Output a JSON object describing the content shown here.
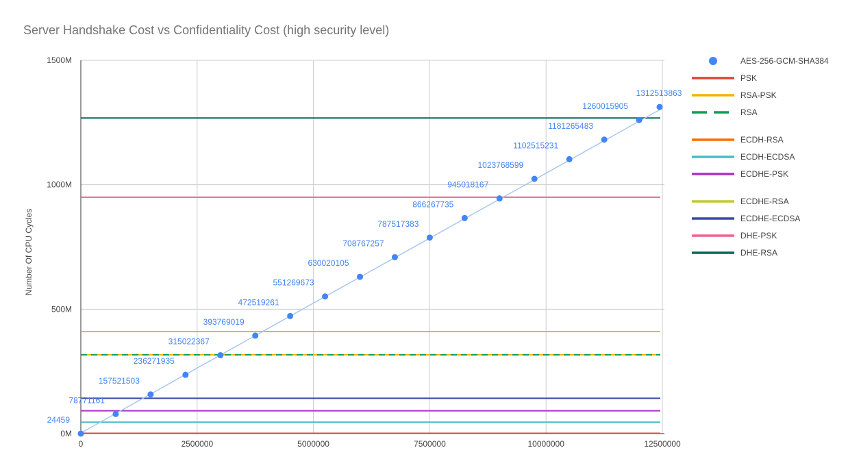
{
  "chart_data": {
    "type": "scatter",
    "title": "Server Handshake Cost vs Confidentiality Cost (high security level)",
    "xlabel": "",
    "ylabel": "Number Of CPU Cycles",
    "xlim": [
      0,
      12500000
    ],
    "ylim": [
      0,
      1500000000
    ],
    "x_ticks": [
      0,
      2500000,
      5000000,
      7500000,
      10000000,
      12500000
    ],
    "x_tick_labels": [
      "0",
      "2500000",
      "5000000",
      "7500000",
      "10000000",
      "12500000"
    ],
    "y_ticks": [
      0,
      500000000,
      1000000000,
      1500000000
    ],
    "y_tick_labels": [
      "0M",
      "500M",
      "1000M",
      "1500M"
    ],
    "grid": true,
    "legend_position": "right",
    "scatter_series": {
      "name": "AES-256-GCM-SHA384",
      "color": "#4285f4",
      "trendline_color": "#a8c7f0",
      "points": [
        {
          "x": 0,
          "y": 24459,
          "label": "24459"
        },
        {
          "x": 750000,
          "y": 78771161,
          "label": "78771161"
        },
        {
          "x": 1500000,
          "y": 157521503,
          "label": "157521503"
        },
        {
          "x": 2250000,
          "y": 236271935,
          "label": "236271935"
        },
        {
          "x": 3000000,
          "y": 315022367,
          "label": "315022367"
        },
        {
          "x": 3750000,
          "y": 393769019,
          "label": "393769019"
        },
        {
          "x": 4500000,
          "y": 472519261,
          "label": "472519261"
        },
        {
          "x": 5250000,
          "y": 551269673,
          "label": "551269673"
        },
        {
          "x": 6000000,
          "y": 630020105,
          "label": "630020105"
        },
        {
          "x": 6750000,
          "y": 708767257,
          "label": "708767257"
        },
        {
          "x": 7500000,
          "y": 787517383,
          "label": "787517383"
        },
        {
          "x": 8250000,
          "y": 866267735,
          "label": "866267735"
        },
        {
          "x": 9000000,
          "y": 945018167,
          "label": "945018167"
        },
        {
          "x": 9750000,
          "y": 1023768599,
          "label": "1023768599"
        },
        {
          "x": 10500000,
          "y": 1102515231,
          "label": "1102515231"
        },
        {
          "x": 11250000,
          "y": 1181265483,
          "label": "1181265483"
        },
        {
          "x": 12000000,
          "y": 1260015905,
          "label": "1260015905"
        },
        {
          "x": 12750000,
          "y": 1312513863,
          "label": "1312513863"
        }
      ]
    },
    "reference_lines": [
      {
        "name": "PSK",
        "y": 1500000,
        "color": "#db4437",
        "dashed": false
      },
      {
        "name": "RSA-PSK",
        "y": 317000000,
        "color": "#f4b400",
        "dashed": false
      },
      {
        "name": "RSA",
        "y": 317000000,
        "color": "#0f9d58",
        "dashed": true
      },
      {
        "name": "ECDH-RSA",
        "y": 317000000,
        "color": "#ff6d00",
        "dashed": false,
        "hidden": true
      },
      {
        "name": "ECDH-ECDSA",
        "y": 46000000,
        "color": "#46bdc6",
        "dashed": false
      },
      {
        "name": "ECDHE-PSK",
        "y": 92000000,
        "color": "#ab30c4",
        "dashed": false
      },
      {
        "name": "ECDHE-RSA",
        "y": 410000000,
        "color": "#c0ca33",
        "dashed": false
      },
      {
        "name": "ECDHE-ECDSA",
        "y": 142000000,
        "color": "#3949ab",
        "dashed": false
      },
      {
        "name": "DHE-PSK",
        "y": 950000000,
        "color": "#f06292",
        "dashed": false
      },
      {
        "name": "DHE-RSA",
        "y": 1268000000,
        "color": "#00695c",
        "dashed": false
      }
    ],
    "legend": [
      {
        "name": "AES-256-GCM-SHA384",
        "color": "#4285f4",
        "marker": "dot"
      },
      {
        "name": "PSK",
        "color": "#db4437",
        "marker": "line"
      },
      {
        "name": "RSA-PSK",
        "color": "#f4b400",
        "marker": "line"
      },
      {
        "name": "RSA",
        "color": "#0f9d58",
        "marker": "dashed"
      },
      {
        "name": "ECDH-RSA",
        "color": "#ff6d00",
        "marker": "line"
      },
      {
        "name": "ECDH-ECDSA",
        "color": "#46bdc6",
        "marker": "line"
      },
      {
        "name": "ECDHE-PSK",
        "color": "#ab30c4",
        "marker": "line"
      },
      {
        "name": "ECDHE-RSA",
        "color": "#c0ca33",
        "marker": "line"
      },
      {
        "name": "ECDHE-ECDSA",
        "color": "#3949ab",
        "marker": "line"
      },
      {
        "name": "DHE-PSK",
        "color": "#f06292",
        "marker": "line"
      },
      {
        "name": "DHE-RSA",
        "color": "#00695c",
        "marker": "line"
      }
    ]
  }
}
